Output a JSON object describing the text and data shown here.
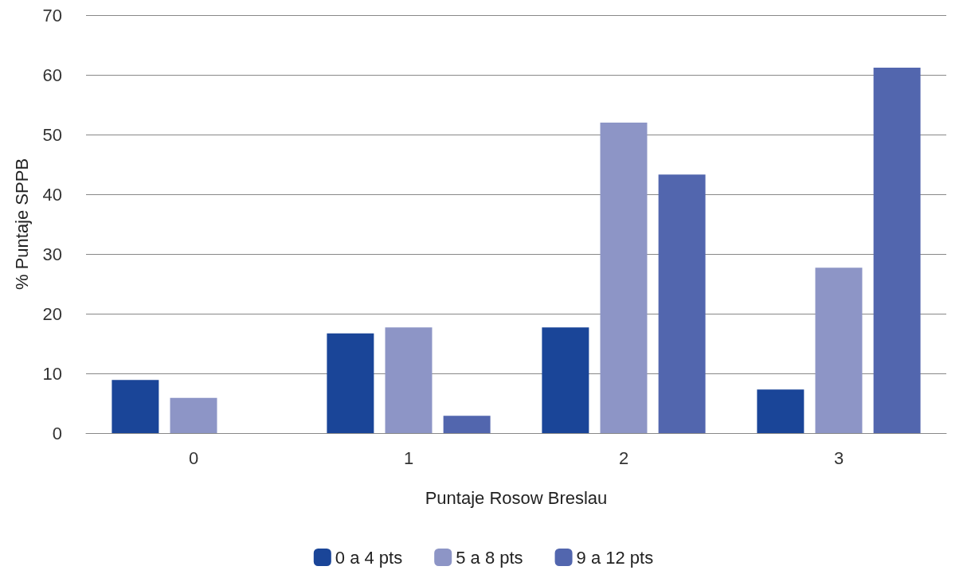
{
  "chart_data": {
    "type": "bar",
    "xlabel": "Puntaje Rosow Breslau",
    "ylabel": "% Puntaje SPPB",
    "categories": [
      "0",
      "1",
      "2",
      "3"
    ],
    "series": [
      {
        "name": "0 a 4 pts",
        "color": "#1a4598",
        "values": [
          8.9,
          16.7,
          17.7,
          7.3
        ]
      },
      {
        "name": "5 a 8 pts",
        "color": "#8d95c6",
        "values": [
          5.9,
          17.7,
          52.0,
          27.7
        ]
      },
      {
        "name": "9 a 12 pts",
        "color": "#5266ae",
        "values": [
          0,
          2.9,
          43.3,
          61.2
        ]
      }
    ],
    "ylim": [
      0,
      70
    ],
    "yticks": [
      0,
      10,
      20,
      30,
      40,
      50,
      60,
      70
    ],
    "grid": "y",
    "legend": "bottom"
  }
}
